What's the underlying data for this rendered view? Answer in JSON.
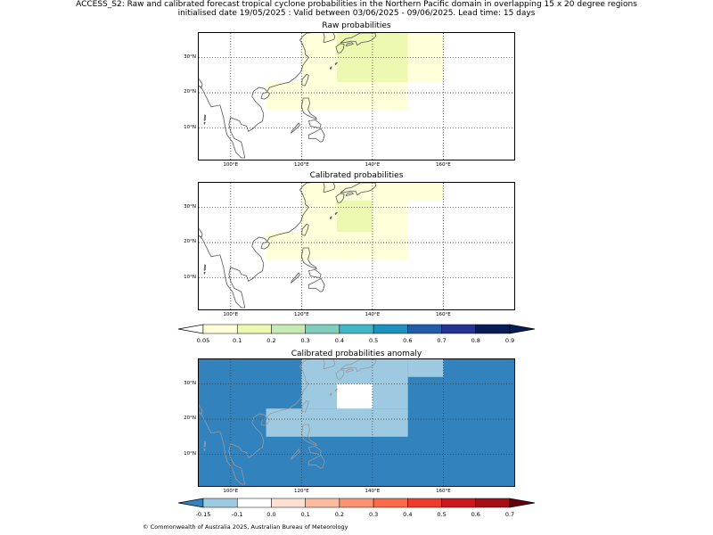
{
  "header": {
    "line1": "ACCESS_S2: Raw and calibrated forecast tropical cyclone probabilities in the Northern Pacific domain in overlapping 15 x 20 degree regions",
    "line2": "initialised date 19/05/2025 :  Valid between 03/06/2025 - 09/06/2025. Lead time: 15 days"
  },
  "panels": [
    {
      "title": "Raw probabilities",
      "cells": [
        {
          "lon0": 110,
          "lon1": 150,
          "lat0": 15,
          "lat1": 23,
          "color": "#ffffd9"
        },
        {
          "lon0": 120,
          "lon1": 130,
          "lat0": 23,
          "lat1": 37,
          "color": "#ffffd9"
        },
        {
          "lon0": 130,
          "lon1": 150,
          "lat0": 23,
          "lat1": 37,
          "color": "#edf8b1"
        },
        {
          "lon0": 150,
          "lon1": 160,
          "lat0": 23,
          "lat1": 37,
          "color": "#ffffd9"
        }
      ]
    },
    {
      "title": "Calibrated probabilities",
      "cells": [
        {
          "lon0": 110,
          "lon1": 150,
          "lat0": 15,
          "lat1": 23,
          "color": "#ffffd9"
        },
        {
          "lon0": 120,
          "lon1": 150,
          "lat0": 23,
          "lat1": 37,
          "color": "#ffffd9"
        },
        {
          "lon0": 150,
          "lon1": 160,
          "lat0": 32,
          "lat1": 37,
          "color": "#ffffd9"
        },
        {
          "lon0": 130,
          "lon1": 140,
          "lat0": 23,
          "lat1": 32,
          "color": "#edf8b1"
        }
      ]
    },
    {
      "title": "Calibrated probabilities anomaly",
      "background": "#3182bd",
      "cells": [
        {
          "lon0": 110,
          "lon1": 150,
          "lat0": 15,
          "lat1": 23,
          "color": "#9ecae1"
        },
        {
          "lon0": 120,
          "lon1": 150,
          "lat0": 23,
          "lat1": 37,
          "color": "#9ecae1"
        },
        {
          "lon0": 150,
          "lon1": 160,
          "lat0": 32,
          "lat1": 37,
          "color": "#9ecae1"
        },
        {
          "lon0": 130,
          "lon1": 140,
          "lat0": 23,
          "lat1": 30,
          "color": "#ffffff"
        }
      ]
    }
  ],
  "axes": {
    "lon_ticks": [
      "100°E",
      "120°E",
      "140°E",
      "160°E"
    ],
    "lat_ticks": [
      "30°N",
      "20°N",
      "10°N"
    ],
    "lon_range": [
      91,
      180
    ],
    "lat_range": [
      1,
      37
    ]
  },
  "colorbar_prob": {
    "labels": [
      "0.05",
      "0.1",
      "0.2",
      "0.3",
      "0.4",
      "0.5",
      "0.6",
      "0.7",
      "0.8",
      "0.9"
    ],
    "colors": [
      "#ffffd9",
      "#edf8b1",
      "#c7e9b4",
      "#7fcdbb",
      "#41b6c4",
      "#1d91c0",
      "#225ea8",
      "#253494",
      "#081d58"
    ],
    "under": "#ffffff",
    "over": "#081d58"
  },
  "colorbar_anom": {
    "labels": [
      "-0.15",
      "-0.1",
      "0.0",
      "0.1",
      "0.2",
      "0.3",
      "0.4",
      "0.5",
      "0.6",
      "0.7"
    ],
    "colors": [
      "#9ecae1",
      "#ffffff",
      "#fee0d2",
      "#fcbba1",
      "#fc9272",
      "#fb6a4a",
      "#ef3b2c",
      "#cb181d",
      "#a50f15"
    ],
    "under": "#3182bd",
    "over": "#67000d"
  },
  "footer": {
    "credit": "© Commonwealth of Australia 2025, Australian Bureau of Meteorology"
  }
}
